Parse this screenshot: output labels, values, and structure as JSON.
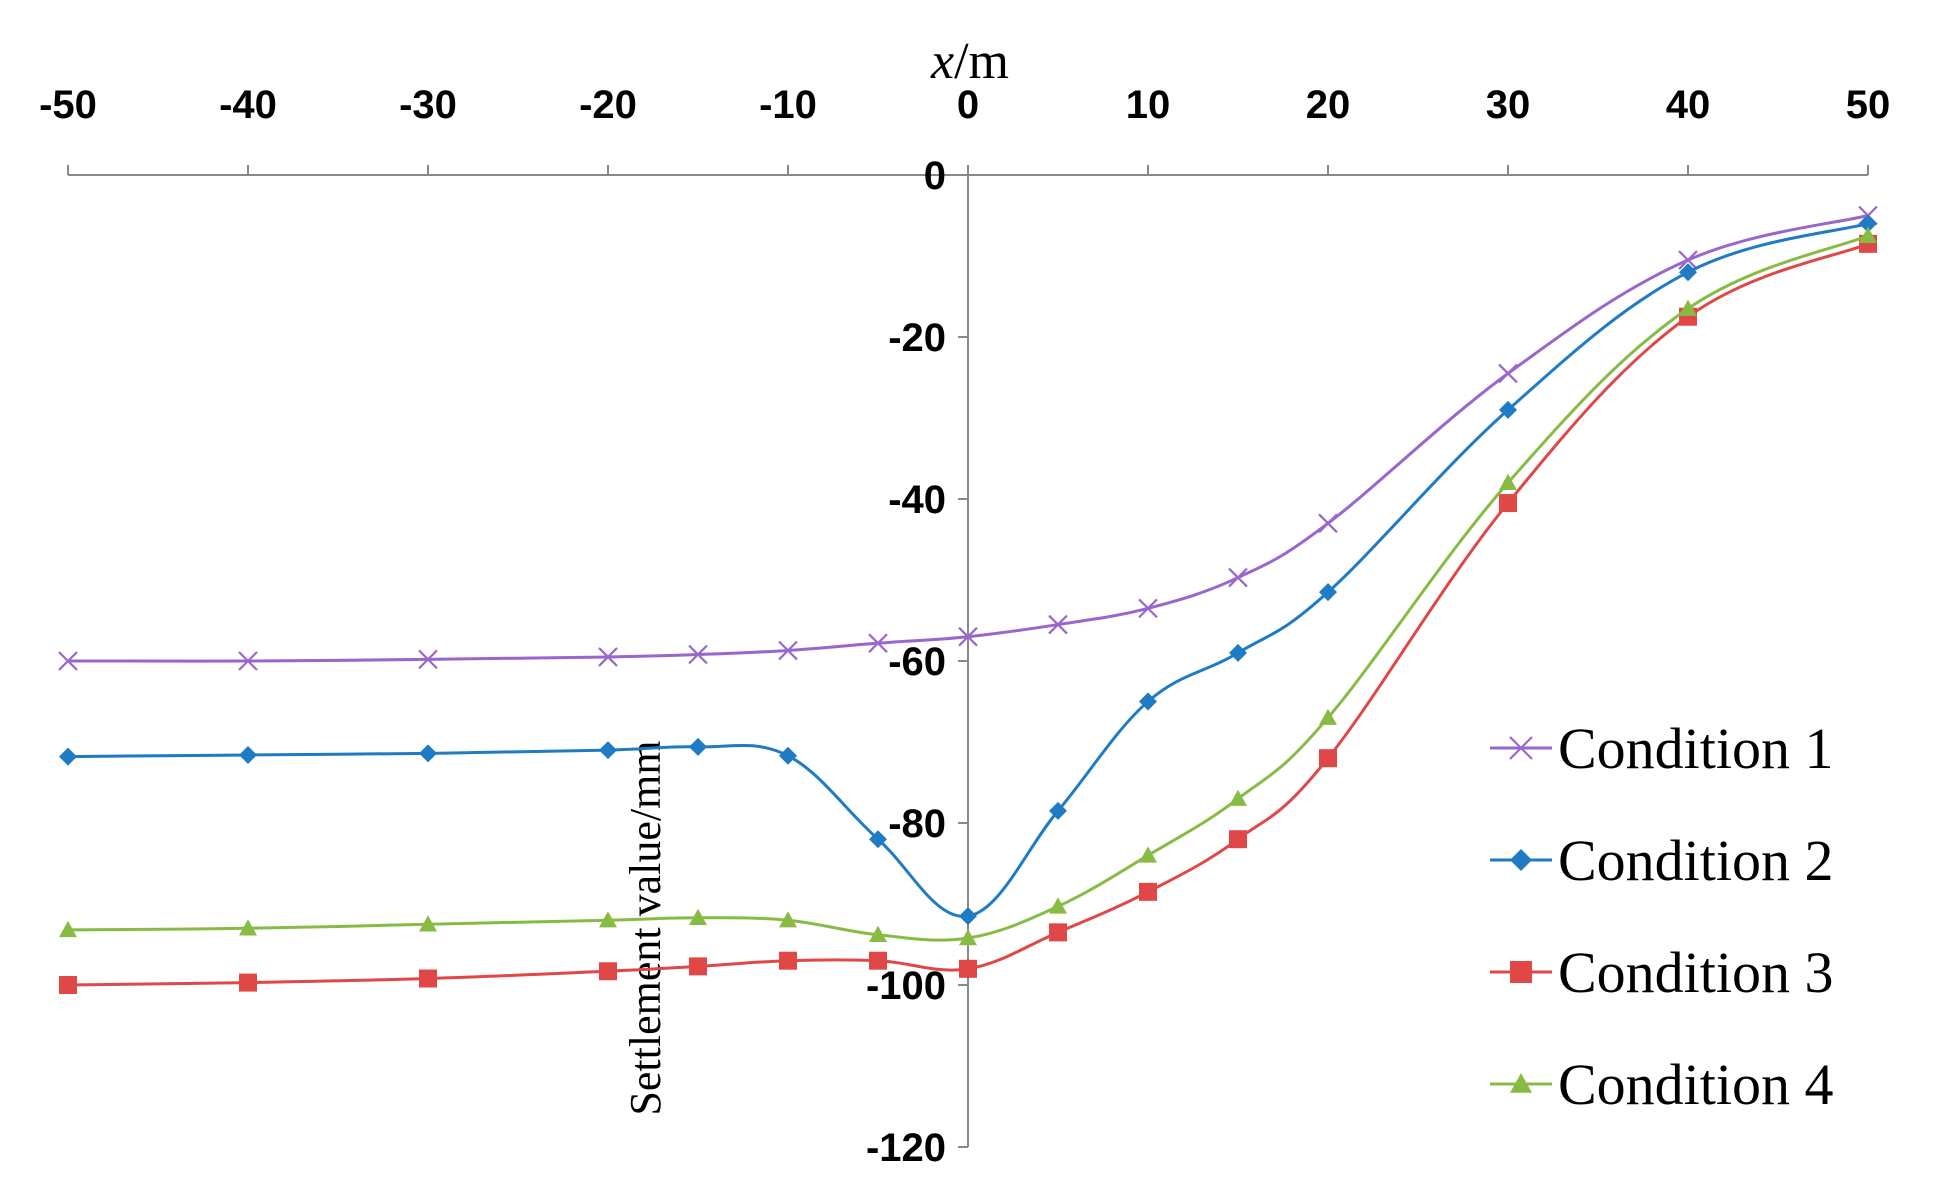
{
  "chart_data": {
    "type": "line",
    "title": "",
    "xlabel_var": "x",
    "xlabel_unit": "/m",
    "ylabel": "Settlement value/mm",
    "xlim": [
      -50,
      50
    ],
    "ylim": [
      -120,
      0
    ],
    "x_ticks": [
      -50,
      -40,
      -30,
      -20,
      -10,
      0,
      10,
      20,
      30,
      40,
      50
    ],
    "y_ticks": [
      0,
      -20,
      -40,
      -60,
      -80,
      -100,
      -120
    ],
    "x_axis_position": "top",
    "legend_position": "right",
    "grid": false,
    "x": [
      -50,
      -40,
      -30,
      -20,
      -15,
      -10,
      -5,
      0,
      5,
      10,
      15,
      20,
      30,
      40,
      50
    ],
    "series": [
      {
        "name": "Condition 1",
        "color": "#9966cc",
        "marker": "x",
        "values": [
          -60,
          -60,
          -59.8,
          -59.5,
          -59.2,
          -58.7,
          -57.8,
          -57,
          -55.5,
          -53.5,
          -49.7,
          -43,
          -24.5,
          -10.5,
          -5
        ]
      },
      {
        "name": "Condition 2",
        "color": "#1f7bc4",
        "marker": "diamond",
        "values": [
          -71.8,
          -71.6,
          -71.4,
          -71,
          -70.6,
          -71.7,
          -82,
          -91.5,
          -78.5,
          -65,
          -59,
          -51.5,
          -29,
          -12,
          -6
        ]
      },
      {
        "name": "Condition 3",
        "color": "#e04848",
        "marker": "square",
        "values": [
          -100,
          -99.7,
          -99.2,
          -98.3,
          -97.7,
          -97,
          -97,
          -98,
          -93.5,
          -88.5,
          -82,
          -72,
          -40.5,
          -17.5,
          -8.5
        ]
      },
      {
        "name": "Condition 4",
        "color": "#88bb44",
        "marker": "triangle",
        "values": [
          -93.2,
          -93,
          -92.5,
          -92,
          -91.7,
          -92,
          -93.8,
          -94.2,
          -90.3,
          -84,
          -77,
          -67,
          -38,
          -16.5,
          -7.5
        ]
      }
    ]
  }
}
